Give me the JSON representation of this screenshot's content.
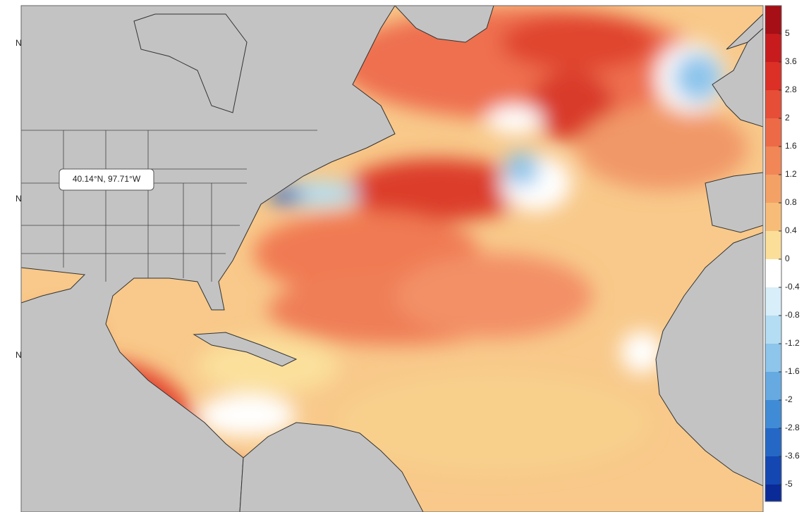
{
  "tooltip": {
    "label": "40.14°N, 97.71°W"
  },
  "latitude_labels": [
    "N",
    "N",
    "N"
  ],
  "colorbar": {
    "ticks": [
      5,
      3.6,
      2.8,
      2,
      1.6,
      1.2,
      0.8,
      0.4,
      0,
      -0.4,
      -0.8,
      -1.2,
      -1.6,
      -2,
      -2.8,
      -3.6,
      -5
    ],
    "colors": [
      "#a50f15",
      "#c81b1e",
      "#dc2f26",
      "#e64e37",
      "#ed6a47",
      "#f18657",
      "#f4a166",
      "#f7bd78",
      "#fbde98",
      "#ffffff",
      "#d8eef9",
      "#b4ddf3",
      "#8dc5eb",
      "#66aae1",
      "#408bd5",
      "#2567c5",
      "#1447b1",
      "#0a2a98"
    ]
  }
}
